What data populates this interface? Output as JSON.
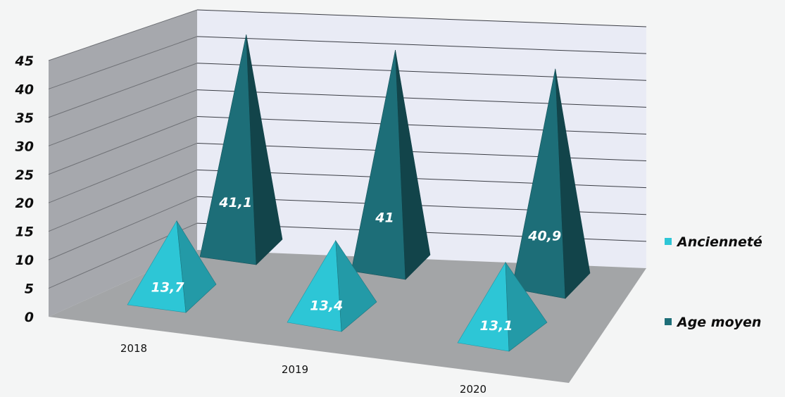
{
  "chart_data": {
    "type": "bar",
    "style": "3d-pyramid",
    "categories": [
      "2018",
      "2019",
      "2020"
    ],
    "series": [
      {
        "name": "Ancienneté",
        "values": [
          13.7,
          13.4,
          13.1
        ],
        "value_labels": [
          "13,7",
          "13,4",
          "13,1"
        ],
        "color": "#2dc6d6"
      },
      {
        "name": "Age moyen",
        "values": [
          41.1,
          41,
          40.9
        ],
        "value_labels": [
          "41,1",
          "41",
          "40,9"
        ],
        "color": "#1d6e78"
      }
    ],
    "y_ticks": [
      "0",
      "5",
      "10",
      "15",
      "20",
      "25",
      "30",
      "35",
      "40",
      "45"
    ],
    "ylim": [
      0,
      45
    ],
    "grid": true,
    "legend_position": "right"
  }
}
